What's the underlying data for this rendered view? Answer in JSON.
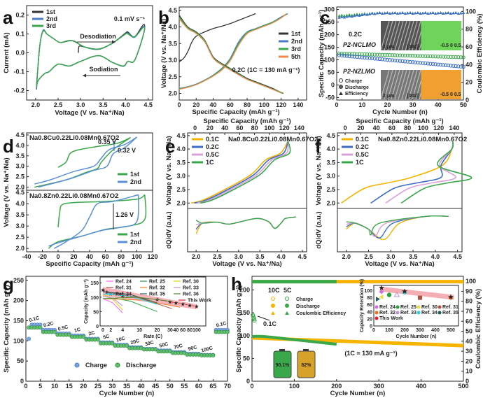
{
  "chart_data": [
    {
      "panel": "a",
      "type": "line",
      "title": "",
      "xlabel": "Voltage (V vs. Na⁺/Na)",
      "ylabel": "Current (mA)",
      "xlim": [
        1.8,
        4.6
      ],
      "ylim": [
        -0.25,
        0.25
      ],
      "xticks": [
        2.0,
        2.5,
        3.0,
        3.5,
        4.0,
        4.5
      ],
      "yticks": [
        -0.2,
        -0.1,
        0.0,
        0.1,
        0.2
      ],
      "annotations": [
        "0.1 mV s⁻¹",
        "Desodiation",
        "Sodiation"
      ],
      "legend": "top-left",
      "series": [
        {
          "name": "1st",
          "color": "#333333",
          "x": [
            2.95,
            2.97,
            3.1,
            3.4,
            3.7,
            4.0,
            4.05,
            4.2,
            4.4,
            4.4,
            4.2,
            4.05,
            3.95,
            3.7,
            3.4,
            3.0,
            2.75,
            2.5,
            2.3,
            2.2,
            2.05,
            2.02,
            2.05,
            2.1,
            2.17,
            2.25,
            2.4,
            2.55,
            2.8,
            2.95
          ],
          "y": [
            0.0,
            0.035,
            0.03,
            0.02,
            0.05,
            0.105,
            0.11,
            0.085,
            0.15,
            0.1,
            -0.04,
            -0.045,
            -0.07,
            -0.05,
            -0.015,
            -0.045,
            -0.07,
            -0.06,
            -0.1,
            -0.11,
            -0.15,
            -0.19,
            -0.08,
            0.05,
            0.12,
            0.1,
            0.075,
            0.055,
            0.065,
            0.05
          ]
        },
        {
          "name": "2nd",
          "color": "#4a7cc6",
          "x": [
            2.02,
            2.05,
            2.1,
            2.17,
            2.25,
            2.4,
            2.55,
            2.8,
            3.1,
            3.4,
            3.7,
            4.0,
            4.05,
            4.2,
            4.4,
            4.4,
            4.2,
            4.05,
            3.95,
            3.7,
            3.4,
            3.0,
            2.75,
            2.5,
            2.3,
            2.2,
            2.05,
            2.02
          ],
          "y": [
            -0.19,
            -0.08,
            0.05,
            0.12,
            0.1,
            0.075,
            0.055,
            0.065,
            0.03,
            0.018,
            0.05,
            0.1,
            0.105,
            0.082,
            0.14,
            0.1,
            -0.04,
            -0.045,
            -0.072,
            -0.05,
            -0.015,
            -0.045,
            -0.07,
            -0.06,
            -0.1,
            -0.11,
            -0.15,
            -0.19
          ]
        },
        {
          "name": "3rd",
          "color": "#3aa84a",
          "x": [
            2.02,
            2.05,
            2.1,
            2.17,
            2.25,
            2.4,
            2.55,
            2.8,
            3.1,
            3.4,
            3.7,
            4.0,
            4.05,
            4.2,
            4.4,
            4.4,
            4.2,
            4.05,
            3.95,
            3.7,
            3.4,
            3.0,
            2.75,
            2.5,
            2.3,
            2.2,
            2.05,
            2.02
          ],
          "y": [
            -0.185,
            -0.08,
            0.05,
            0.115,
            0.1,
            0.075,
            0.055,
            0.065,
            0.03,
            0.02,
            0.05,
            0.1,
            0.1,
            0.085,
            0.135,
            0.1,
            -0.04,
            -0.045,
            -0.07,
            -0.05,
            -0.015,
            -0.045,
            -0.07,
            -0.06,
            -0.1,
            -0.11,
            -0.15,
            -0.185
          ]
        }
      ]
    },
    {
      "panel": "b",
      "type": "line",
      "xlabel": "Specific Capacity (mAh g⁻¹)",
      "ylabel": "Voltage (V vs. Na⁺/Na)",
      "xlim": [
        0,
        150
      ],
      "ylim": [
        1.8,
        4.6
      ],
      "xticks": [
        0,
        20,
        40,
        60,
        80,
        100,
        120,
        140
      ],
      "yticks": [
        2.0,
        2.5,
        3.0,
        3.5,
        4.0,
        4.5
      ],
      "annotations": [
        "0.2C (1C = 130 mA g⁻¹)"
      ],
      "legend": "right",
      "series": [
        {
          "name": "1st",
          "color": "#333333",
          "x": [
            0,
            5,
            10,
            15,
            20,
            30,
            40,
            50,
            60,
            70,
            80,
            90
          ],
          "y": [
            2.95,
            3.05,
            3.25,
            3.55,
            3.72,
            3.85,
            3.95,
            4.02,
            4.1,
            4.2,
            4.3,
            4.4
          ]
        },
        {
          "name": "2nd",
          "color": "#4a7cc6",
          "x": [
            0,
            10,
            20,
            30,
            40,
            50,
            60,
            70,
            80,
            90,
            100,
            110,
            120,
            128
          ],
          "y": [
            2.15,
            2.2,
            2.28,
            2.4,
            2.55,
            2.75,
            3.05,
            3.55,
            3.85,
            3.95,
            4.05,
            4.15,
            4.3,
            4.4
          ]
        },
        {
          "name": "3rd",
          "color": "#3aa84a",
          "x": [
            0,
            10,
            20,
            30,
            40,
            50,
            60,
            70,
            80,
            90,
            100,
            110,
            120,
            127
          ],
          "y": [
            2.14,
            2.19,
            2.27,
            2.39,
            2.54,
            2.73,
            3.02,
            3.5,
            3.83,
            3.94,
            4.04,
            4.14,
            4.28,
            4.39
          ]
        },
        {
          "name": "5th",
          "color": "#f08a4b",
          "x": [
            0,
            10,
            20,
            30,
            40,
            50,
            60,
            70,
            80,
            90,
            100,
            110,
            120,
            126
          ],
          "y": [
            2.12,
            2.18,
            2.26,
            2.38,
            2.52,
            2.7,
            2.98,
            3.45,
            3.8,
            3.92,
            4.02,
            4.12,
            4.27,
            4.4
          ]
        },
        {
          "name": "1st-discharge",
          "color": "#333333",
          "x": [
            0,
            10,
            20,
            30,
            40,
            50,
            60,
            70,
            80,
            90,
            100,
            110,
            122
          ],
          "y": [
            4.35,
            4.0,
            3.85,
            3.6,
            3.1,
            2.9,
            2.75,
            2.6,
            2.45,
            2.35,
            2.25,
            2.15,
            2.0
          ]
        },
        {
          "name": "2nd-discharge",
          "color": "#4a7cc6",
          "x": [
            0,
            10,
            20,
            30,
            40,
            50,
            60,
            70,
            80,
            90,
            100,
            110,
            122
          ],
          "y": [
            4.3,
            3.98,
            3.83,
            3.58,
            3.08,
            2.88,
            2.73,
            2.58,
            2.43,
            2.33,
            2.23,
            2.13,
            2.0
          ]
        },
        {
          "name": "3rd-discharge",
          "color": "#3aa84a",
          "x": [
            0,
            10,
            20,
            30,
            40,
            50,
            60,
            70,
            80,
            90,
            100,
            110,
            123
          ],
          "y": [
            4.3,
            3.98,
            3.83,
            3.58,
            3.08,
            2.88,
            2.73,
            2.58,
            2.43,
            2.33,
            2.23,
            2.13,
            2.0
          ]
        },
        {
          "name": "5th-discharge",
          "color": "#f08a4b",
          "x": [
            0,
            10,
            20,
            30,
            40,
            50,
            60,
            70,
            80,
            90,
            100,
            110,
            121
          ],
          "y": [
            4.25,
            3.95,
            3.8,
            3.55,
            3.06,
            2.86,
            2.71,
            2.56,
            2.42,
            2.32,
            2.22,
            2.12,
            2.0
          ]
        }
      ]
    },
    {
      "panel": "c",
      "type": "scatter",
      "xlabel": "Cycle Number (n)",
      "ylabel": "Specific Capacity (mAh g⁻¹)",
      "y2label": "Coulombic Efficiency (%)",
      "xlim": [
        0,
        50
      ],
      "ylim": [
        -60,
        310
      ],
      "y2lim": [
        0,
        105
      ],
      "xticks": [
        0,
        10,
        20,
        30,
        40,
        50
      ],
      "yticks": [
        -50,
        0,
        50,
        100,
        150,
        200,
        250,
        300
      ],
      "y2ticks": [
        0,
        20,
        40,
        60,
        80,
        100
      ],
      "annotations": [
        "0.2C",
        "P2-NCLMO",
        "P2-NZLMO",
        "2 μm",
        "[002]",
        "-0.5 0 0.5"
      ],
      "legend_entries": [
        "Charge",
        "Discharge",
        "Efficiency"
      ],
      "legend": "bottom-left",
      "series": [
        {
          "name": "P2-NCLMO capacity",
          "color": "#3aa84a",
          "start": 125,
          "end": 110
        },
        {
          "name": "P2-NZLMO capacity",
          "color": "#3a6cc6",
          "start": 118,
          "end": 72
        },
        {
          "name": "P2-NCLMO efficiency",
          "color": "#3aa84a",
          "start": 95,
          "end": 98
        },
        {
          "name": "P2-NZLMO efficiency",
          "color": "#3a6cc6",
          "start": 93,
          "end": 98
        }
      ]
    },
    {
      "panel": "d",
      "type": "line",
      "xlabel": "Specific Capacity (mAh g⁻¹)",
      "ylabel": "Voltage (V vs. Na⁺/Na)",
      "xlim": [
        -40,
        120
      ],
      "ylim": [
        1.8,
        4.6
      ],
      "xticks": [
        -40,
        -20,
        0,
        20,
        40,
        60,
        80,
        100,
        120
      ],
      "yticks": [
        2.0,
        2.5,
        3.0,
        3.5,
        4.0,
        4.5
      ],
      "subplots": [
        {
          "title": "Na0.8Cu0.22Li0.08Mn0.67O2",
          "annotations": [
            "0.35 V",
            "0.32 V"
          ],
          "legend": [
            "1st",
            "2nd"
          ]
        },
        {
          "title": "Na0.8Zn0.22Li0.08Mn0.67O2",
          "annotations": [
            "1.26 V"
          ],
          "legend": [
            "1st",
            "2nd"
          ]
        }
      ],
      "colors": {
        "1st": "#3aa84a",
        "2nd": "#5b8fd6"
      }
    },
    {
      "panel": "e",
      "type": "line",
      "x2label": "Specific Capacity (mAh g⁻¹)",
      "xlabel": "Voltage (V vs. Na⁺/Na)",
      "ylabel": "Voltage (V vs. Na⁺/Na)",
      "ylabel2": "dQ/dV (a.u.)",
      "title": "Na0.8Cu0.22Li0.08Mn0.67O2",
      "x2ticks": [
        0,
        20,
        40,
        60,
        80,
        100,
        120,
        140
      ],
      "xticks": [
        2.0,
        2.5,
        3.0,
        3.5,
        4.0,
        4.5
      ],
      "yticks": [
        2.0,
        2.5,
        3.0,
        3.5,
        4.0,
        4.5
      ],
      "legend": [
        "0.1C",
        "0.2C",
        "0.5C",
        "1C"
      ]
    },
    {
      "panel": "f",
      "type": "line",
      "x2label": "Specific Capacity (mAh g⁻¹)",
      "xlabel": "Voltage (V vs. Na⁺/Na)",
      "ylabel": "Voltage (V vs. Na⁺/Na)",
      "ylabel2": "dQ/dV (a.u.)",
      "title": "Na0.8Zn0.22Li0.08Mn0.67O2",
      "x2ticks": [
        0,
        20,
        40,
        60,
        80,
        100,
        120,
        140
      ],
      "xticks": [
        2.0,
        2.5,
        3.0,
        3.5,
        4.0,
        4.5
      ],
      "yticks": [
        2.0,
        2.5,
        3.0,
        3.5,
        4.0,
        4.5
      ],
      "legend": [
        "0.1C",
        "0.2C",
        "0.5C",
        "1C"
      ]
    },
    {
      "panel": "g",
      "type": "scatter",
      "xlabel": "Cycle Number (n)",
      "ylabel": "Specific Capacity (mAh g⁻¹)",
      "xlim": [
        0,
        70
      ],
      "ylim": [
        0,
        260
      ],
      "xticks": [
        0,
        5,
        10,
        15,
        20,
        25,
        30,
        35,
        40,
        45,
        50,
        55,
        60,
        65,
        70
      ],
      "yticks": [
        0,
        50,
        100,
        150,
        200,
        250
      ],
      "rate_labels": [
        "0.1C",
        "0.2C",
        "0.5C",
        "1C",
        "2C",
        "5C",
        "10C",
        "20C",
        "30C",
        "50C",
        "70C",
        "90C",
        "100C",
        "0.1C"
      ],
      "steps": [
        {
          "rate": "0.1C",
          "charge": 140,
          "discharge": 133
        },
        {
          "rate": "0.2C",
          "charge": 127,
          "discharge": 122
        },
        {
          "rate": "0.5C",
          "charge": 118,
          "discharge": 115
        },
        {
          "rate": "1C",
          "charge": 113,
          "discharge": 110
        },
        {
          "rate": "2C",
          "charge": 105,
          "discharge": 103
        },
        {
          "rate": "5C",
          "charge": 96,
          "discharge": 94
        },
        {
          "rate": "10C",
          "charge": 90,
          "discharge": 88
        },
        {
          "rate": "20C",
          "charge": 84,
          "discharge": 82
        },
        {
          "rate": "30C",
          "charge": 80,
          "discharge": 79
        },
        {
          "rate": "50C",
          "charge": 76,
          "discharge": 74
        },
        {
          "rate": "70C",
          "charge": 72,
          "discharge": 70
        },
        {
          "rate": "90C",
          "charge": 68,
          "discharge": 66
        },
        {
          "rate": "100C",
          "charge": 65,
          "discharge": 64
        },
        {
          "rate": "0.1C",
          "charge": 127,
          "discharge": 122
        }
      ],
      "legend": [
        "Charge",
        "Discharge"
      ],
      "inset": {
        "xlabel": "Rate (C)",
        "ylabel": "Capacity (mAh g⁻¹)",
        "xticks": [
          "0",
          "2",
          "4",
          "10",
          "20",
          "30",
          "40",
          "60",
          "80",
          "100"
        ],
        "yticks": [
          0,
          50,
          100,
          150
        ],
        "legend": [
          "Ref. 24",
          "Ref. 25",
          "Ref. 30",
          "Ref. 31",
          "Ref. 32",
          "Ref. 33",
          "Ref. 34",
          "Ref. 35",
          "Ref. 36",
          "This Work"
        ]
      }
    },
    {
      "panel": "h",
      "type": "scatter",
      "xlabel": "Cycle Number (n)",
      "ylabel": "Specific Capacity (mAh g⁻¹)",
      "y2label": "Coulombic Efficiency (%)",
      "xlim": [
        0,
        500
      ],
      "ylim": [
        0,
        230
      ],
      "y2lim": [
        0,
        105
      ],
      "xticks": [
        0,
        100,
        200,
        300,
        400,
        500
      ],
      "yticks": [
        0,
        50,
        100,
        150,
        200
      ],
      "y2ticks": [
        0,
        10,
        20,
        30,
        40,
        50,
        60,
        70,
        80,
        90,
        100
      ],
      "annotations": [
        "0.1C",
        "(1C = 130 mA g⁻¹)",
        "90.1%",
        "82%"
      ],
      "legend_header": [
        "10C",
        "5C"
      ],
      "legend": [
        "Charge",
        "Discharge",
        "Coulombic Efficiency"
      ],
      "series": [
        {
          "name": "5C",
          "color": "#3aa84a",
          "cycles": 200,
          "start": 98,
          "end": 81
        },
        {
          "name": "10C",
          "color": "#f4b400",
          "cycles": 500,
          "start": 95,
          "end": 78
        }
      ],
      "inset": {
        "xlabel": "Cycle Number (n)",
        "ylabel": "Capacity Retention (%)",
        "xticks": [
          0,
          100,
          200,
          300,
          400,
          500
        ],
        "yticks": [
          0,
          20,
          40,
          60,
          80,
          100
        ],
        "points": [
          {
            "ref": "Ref. 24",
            "x": 50,
            "y": 97,
            "color": "#d070e0",
            "marker": "diamond"
          },
          {
            "ref": "Ref. 25",
            "x": 100,
            "y": 88,
            "color": "#2aa040",
            "marker": "circle"
          },
          {
            "ref": "Ref. 30",
            "x": 50,
            "y": 82,
            "color": "#e8e040",
            "marker": "triangle-left"
          },
          {
            "ref": "Ref. 31",
            "x": 300,
            "y": 80,
            "color": "#b05040",
            "marker": "square"
          },
          {
            "ref": "Ref. 32",
            "x": 500,
            "y": 80,
            "color": "#f07020",
            "marker": "diamond"
          },
          {
            "ref": "Ref. 33",
            "x": 150,
            "y": 88,
            "color": "#c090d0",
            "marker": "triangle-up"
          },
          {
            "ref": "Ref. 34",
            "x": 200,
            "y": 95,
            "color": "#30d0e0",
            "marker": "diamond"
          },
          {
            "ref": "Ref. 35",
            "x": 25,
            "y": 76,
            "color": "#206060",
            "marker": "triangle-right"
          },
          {
            "ref": "This Work",
            "x": 50,
            "y": 108,
            "color": "#e02030",
            "marker": "star"
          },
          {
            "ref": "This Work",
            "x": 200,
            "y": 98,
            "color": "#e02030",
            "marker": "star"
          },
          {
            "ref": "This Work",
            "x": 500,
            "y": 82,
            "color": "#e02030",
            "marker": "star"
          }
        ]
      }
    }
  ],
  "labels": {
    "a": "a",
    "b": "b",
    "c": "c",
    "d": "d",
    "e": "e",
    "f": "f",
    "g": "g",
    "h": "h"
  }
}
